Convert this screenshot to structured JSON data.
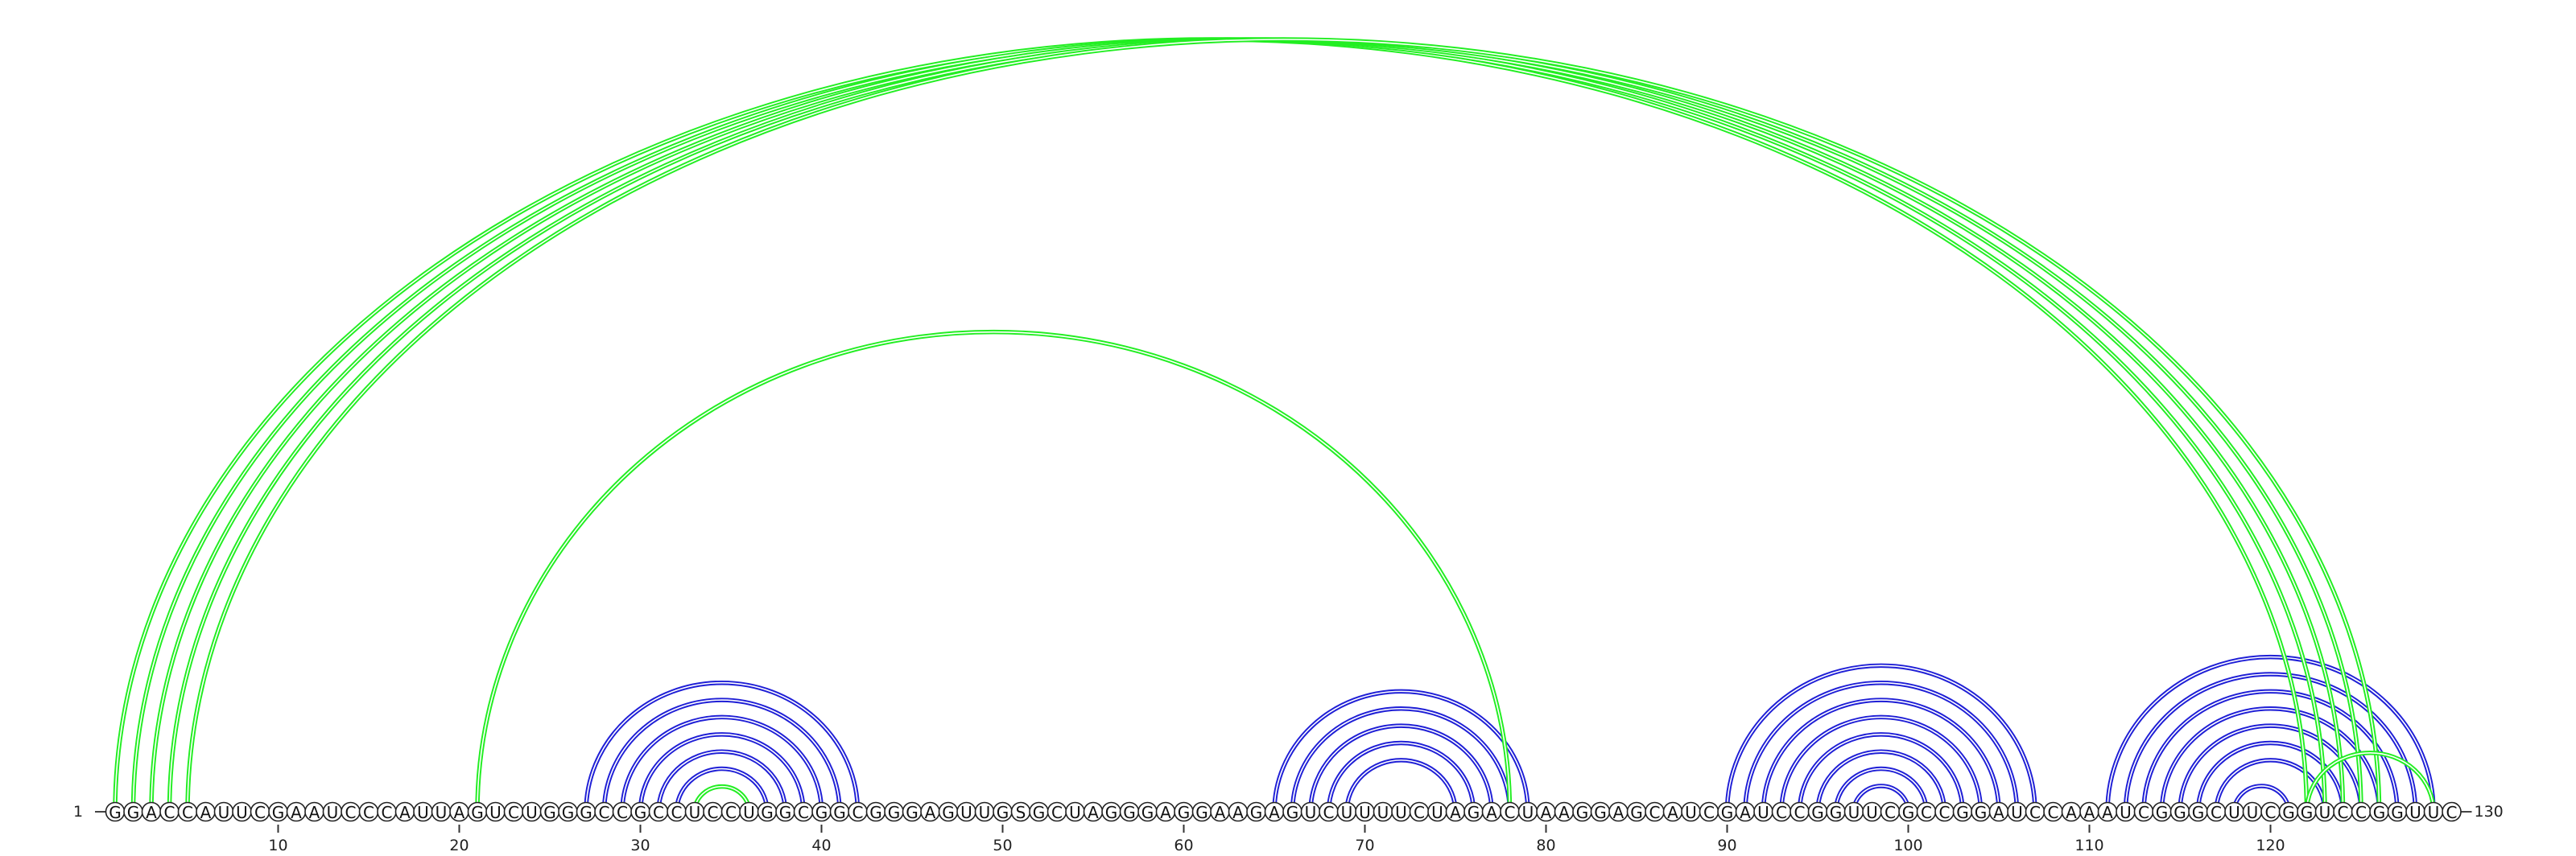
{
  "sequence": "GGACCAUUCGAAUCCCAUUAGUCUGGGCCGCCUCCUGGCGGCGGGAGUUGSGCUAGGGAGGAAGAGUCUUUUCUAGACUAAGGAGCAUCGAUCCGGUUCGCCGGAUCCAAAUCGGGCUUCGGUCCGGUUC",
  "start_label": "1",
  "end_label": "130",
  "ticks": [
    "10",
    "20",
    "30",
    "40",
    "50",
    "60",
    "70",
    "80",
    "90",
    "100",
    "110",
    "120"
  ],
  "colors": {
    "long_range": "#22ee22",
    "local": "#1f1fd6"
  },
  "pairs": {
    "long_range": [
      [
        1,
        122
      ],
      [
        2,
        123
      ],
      [
        3,
        124
      ],
      [
        4,
        125
      ],
      [
        5,
        126
      ],
      [
        21,
        78
      ],
      [
        33,
        36
      ],
      [
        122,
        129
      ]
    ],
    "local": [
      [
        27,
        42
      ],
      [
        28,
        41
      ],
      [
        29,
        40
      ],
      [
        30,
        39
      ],
      [
        31,
        38
      ],
      [
        32,
        37
      ],
      [
        65,
        79
      ],
      [
        66,
        78
      ],
      [
        67,
        77
      ],
      [
        68,
        76
      ],
      [
        69,
        75
      ],
      [
        90,
        107
      ],
      [
        91,
        106
      ],
      [
        92,
        105
      ],
      [
        93,
        104
      ],
      [
        94,
        103
      ],
      [
        95,
        102
      ],
      [
        96,
        101
      ],
      [
        97,
        100
      ],
      [
        111,
        129
      ],
      [
        112,
        128
      ],
      [
        113,
        127
      ],
      [
        114,
        126
      ],
      [
        115,
        125
      ],
      [
        116,
        124
      ],
      [
        117,
        123
      ],
      [
        118,
        121
      ]
    ]
  }
}
